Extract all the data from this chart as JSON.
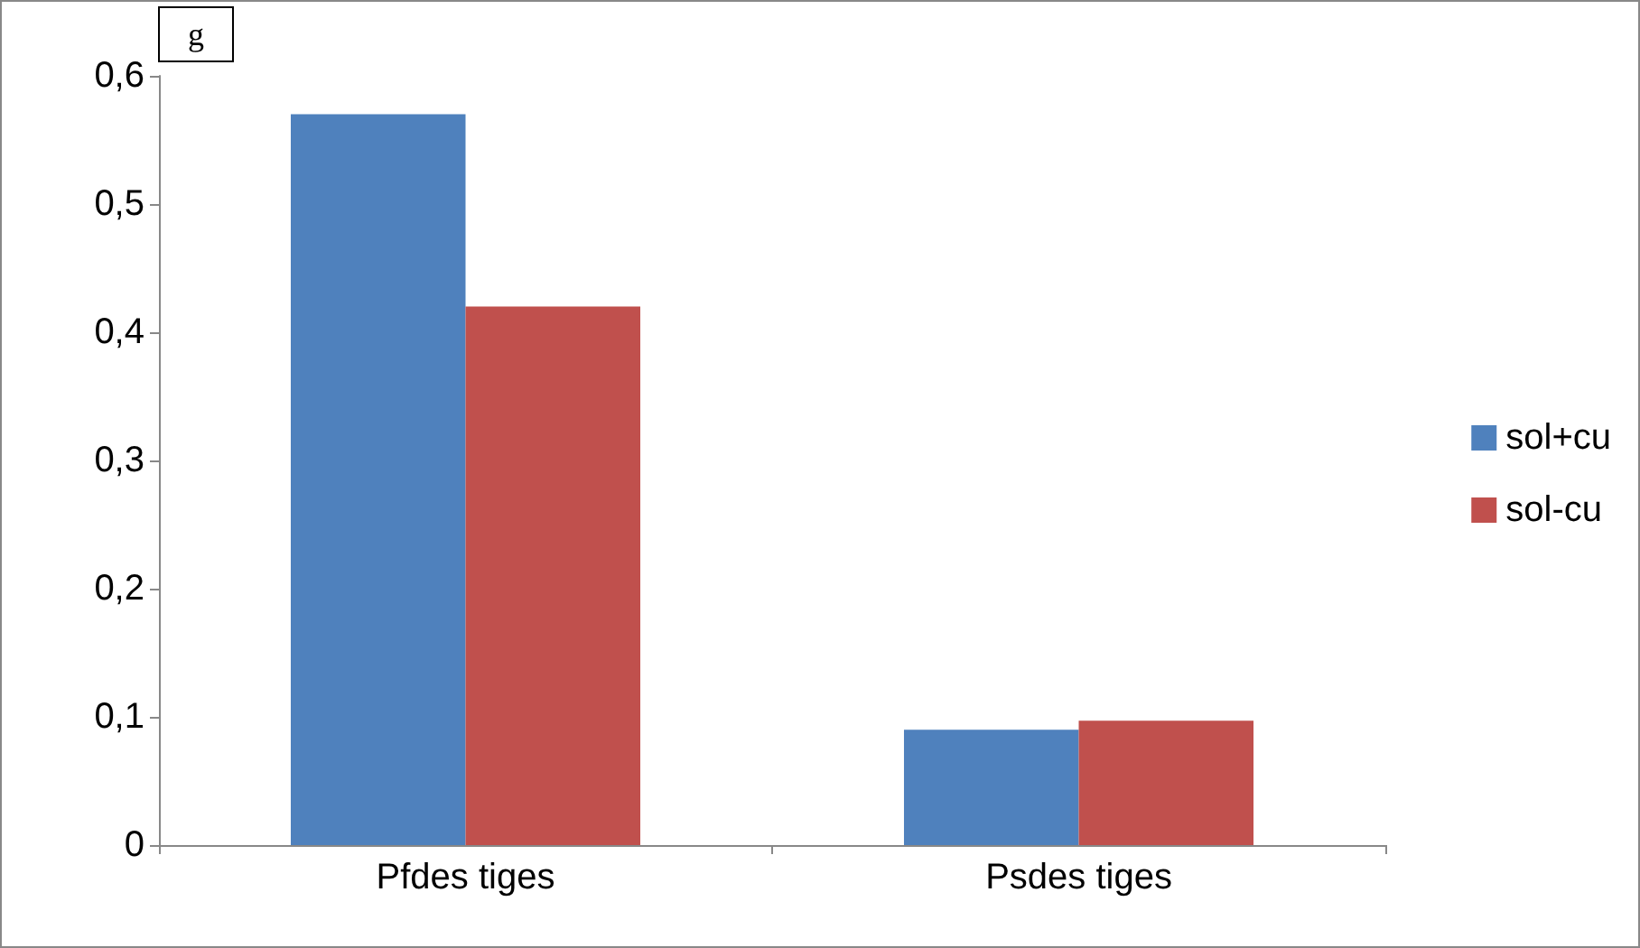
{
  "chart_data": {
    "type": "bar",
    "ylabel": "g",
    "categories": [
      "Pfdes tiges",
      "Psdes tiges"
    ],
    "series": [
      {
        "name": "sol+cu",
        "color": "#4f81bd",
        "values": [
          0.57,
          0.09
        ]
      },
      {
        "name": "sol-cu",
        "color": "#c0504d",
        "values": [
          0.42,
          0.097
        ]
      }
    ],
    "ylim": [
      0,
      0.6
    ],
    "yticks": [
      0,
      {
        "value": 0.1,
        "label": "0,1"
      },
      {
        "value": 0.2,
        "label": "0,2"
      },
      {
        "value": 0.3,
        "label": "0,3"
      },
      {
        "value": 0.4,
        "label": "0,4"
      },
      {
        "value": 0.5,
        "label": "0,5"
      },
      {
        "value": 0.6,
        "label": "0,6"
      }
    ],
    "grid": false,
    "legend": "right"
  }
}
